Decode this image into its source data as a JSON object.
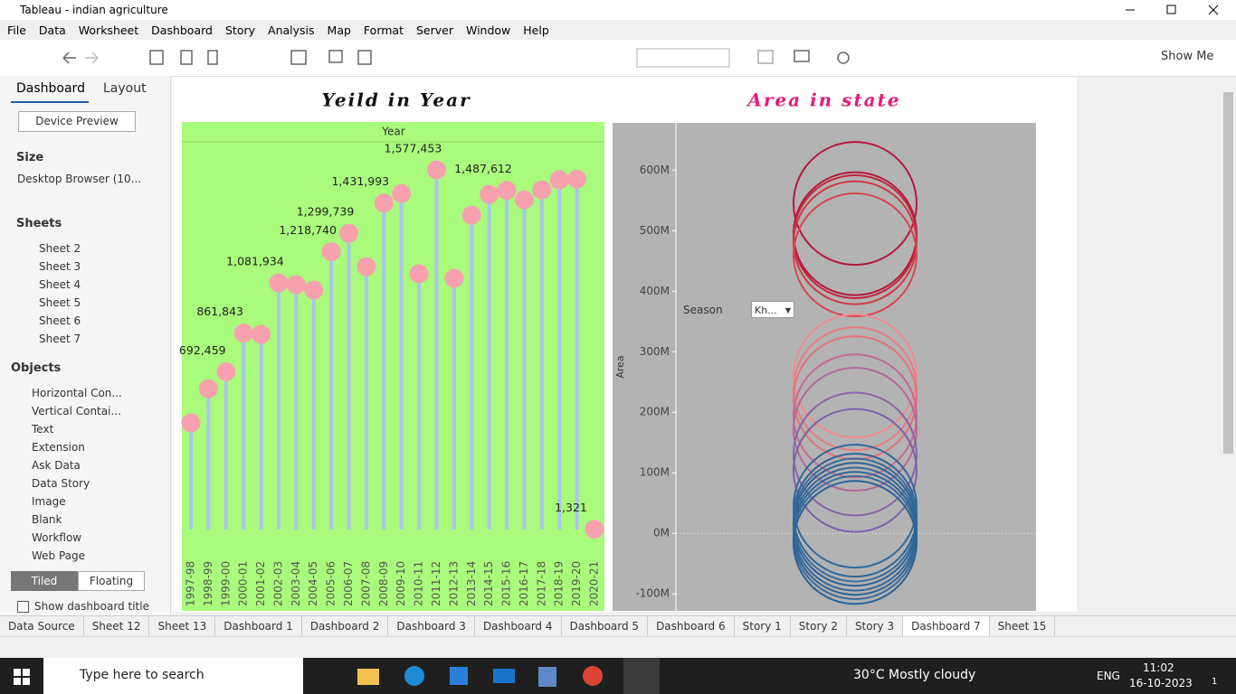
{
  "window": {
    "title": "Tableau - indian agriculture"
  },
  "menu": [
    "File",
    "Data",
    "Worksheet",
    "Dashboard",
    "Story",
    "Analysis",
    "Map",
    "Format",
    "Server",
    "Window",
    "Help"
  ],
  "toolbar": {
    "show_me": "Show Me"
  },
  "left_panel": {
    "tabs": [
      "Dashboard",
      "Layout"
    ],
    "device_preview": "Device Preview",
    "size_label": "Size",
    "size_value": "Desktop Browser (10...",
    "sheets_label": "Sheets",
    "sheets": [
      "Sheet 2",
      "Sheet 3",
      "Sheet 4",
      "Sheet 5",
      "Sheet 6",
      "Sheet 7"
    ],
    "objects_label": "Objects",
    "objects": [
      "Horizontal Con...",
      "Vertical Contai...",
      "Text",
      "Extension",
      "Ask Data",
      "Data Story",
      "Image",
      "Blank",
      "Workflow",
      "Web Page"
    ],
    "tiled": "Tiled",
    "floating": "Floating",
    "show_title": "Show dashboard title"
  },
  "chart_data": [
    {
      "type": "lollipop",
      "title": "Yeild in Year",
      "header": "Year",
      "stem_color": "#a9c6ec",
      "color": "#f8a1ae",
      "background": "#a8fb7b",
      "categories": [
        "1997-98",
        "1998-99",
        "1999-00",
        "2000-01",
        "2001-02",
        "2002-03",
        "2003-04",
        "2004-05",
        "2005-06",
        "2006-07",
        "2007-08",
        "2008-09",
        "2009-10",
        "2010-11",
        "2011-12",
        "2012-13",
        "2013-14",
        "2014-15",
        "2015-16",
        "2016-17",
        "2017-18",
        "2018-19",
        "2019-20",
        "2020-21"
      ],
      "values": [
        468000,
        618000,
        692459,
        861843,
        856000,
        1081934,
        1074000,
        1050000,
        1218740,
        1299739,
        1153000,
        1431993,
        1474000,
        1122000,
        1577453,
        1102000,
        1379000,
        1470000,
        1487612,
        1446000,
        1490000,
        1534000,
        1537000,
        1321
      ],
      "value_labels": [
        null,
        null,
        "692,459",
        "861,843",
        null,
        "1,081,934",
        null,
        null,
        "1,218,740",
        "1,299,739",
        null,
        "1,431,993",
        null,
        null,
        "1,577,453",
        null,
        null,
        null,
        "1,487,612",
        null,
        null,
        null,
        null,
        "1,321"
      ]
    },
    {
      "type": "bubble",
      "title": "Area in state",
      "y_label": "Area",
      "background": "#b3b3b3",
      "ylim": [
        -128000000,
        678000000
      ],
      "yticks": [
        {
          "value": -100000000,
          "label": "-100M"
        },
        {
          "value": 0,
          "label": "0M"
        },
        {
          "value": 100000000,
          "label": "100M"
        },
        {
          "value": 200000000,
          "label": "200M"
        },
        {
          "value": 300000000,
          "label": "300M"
        },
        {
          "value": 400000000,
          "label": "400M"
        },
        {
          "value": 500000000,
          "label": "500M"
        },
        {
          "value": 600000000,
          "label": "600M"
        }
      ],
      "values": [
        545000000,
        495000000,
        490000000,
        480000000,
        460000000,
        260000000,
        239000000,
        224000000,
        194000000,
        172000000,
        131000000,
        104000000,
        45000000,
        30000000,
        22000000,
        15000000,
        7000000,
        0,
        -7000000,
        -15000000
      ],
      "colors": [
        "#b5173d",
        "#b5173d",
        "#c0253f",
        "#cc3a45",
        "#d8464e",
        "#f08b8f",
        "#ec7b80",
        "#e6727a",
        "#c46a93",
        "#b06a9a",
        "#8a63a6",
        "#7c62a6",
        "#34689a",
        "#2f6597",
        "#3a6c9c",
        "#2d6296",
        "#356899",
        "#2e6497",
        "#3a6b9b",
        "#2c6194"
      ]
    }
  ],
  "filter": {
    "label": "Season",
    "value": "Kh..."
  },
  "tabs": [
    "Data Source",
    "Sheet 12",
    "Sheet 13",
    "Dashboard 1",
    "Dashboard 2",
    "Dashboard 3",
    "Dashboard 4",
    "Dashboard 5",
    "Dashboard 6",
    "Story 1",
    "Story 2",
    "Story 3",
    "Dashboard 7",
    "Sheet 15"
  ],
  "active_tab": 12,
  "taskbar": {
    "search": "Type here to search",
    "weather": "30°C  Mostly cloudy",
    "lang": "ENG",
    "time": "11:02",
    "date": "16-10-2023",
    "notifications": "1"
  }
}
